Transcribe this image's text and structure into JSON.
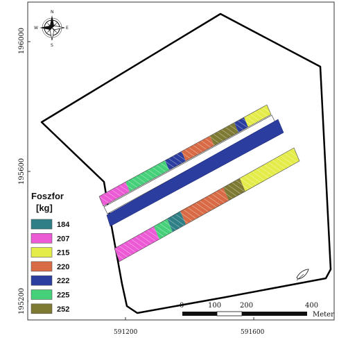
{
  "axes": {
    "y_ticks": [
      {
        "label": "196000",
        "northing": 196000
      },
      {
        "label": "195600",
        "northing": 195600
      },
      {
        "label": "195200",
        "northing": 195200
      }
    ],
    "x_ticks": [
      {
        "label": "591200",
        "easting": 591200
      },
      {
        "label": "591600",
        "easting": 591600
      }
    ]
  },
  "north_arrow": {
    "icon": "compass-rose-icon",
    "n": "N",
    "s": "S",
    "e": "E",
    "w": "W"
  },
  "legend": {
    "title_line1": "Foszfor",
    "title_line2": "[kg]",
    "items": [
      {
        "label": "184",
        "color": "#2e7f86"
      },
      {
        "label": "207",
        "color": "#ec5ad5"
      },
      {
        "label": "215",
        "color": "#e4ec4a"
      },
      {
        "label": "220",
        "color": "#d86b45"
      },
      {
        "label": "222",
        "color": "#2b3d9e"
      },
      {
        "label": "225",
        "color": "#46d07a"
      },
      {
        "label": "252",
        "color": "#7e7a33"
      }
    ]
  },
  "scale_bar": {
    "ticks": [
      "0",
      "100",
      "200",
      "400"
    ],
    "unit": "Meter"
  },
  "colors": {
    "field_outline": "#000000",
    "background": "#ffffff"
  }
}
